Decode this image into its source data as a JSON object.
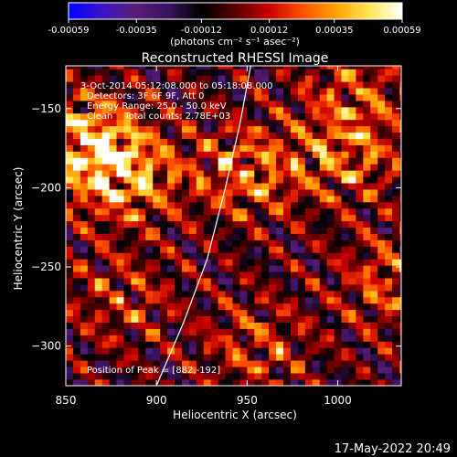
{
  "colorbar": {
    "colors": [
      "#0000ff",
      "#3c14c8",
      "#5a1e7a",
      "#3a1260",
      "#000000",
      "#5a0000",
      "#c80000",
      "#ff5000",
      "#ffa000",
      "#ffe650",
      "#ffffff"
    ],
    "ticks": [
      "-0.00059",
      "-0.00035",
      "-0.00012",
      "0.00012",
      "0.00035",
      "0.00059"
    ],
    "tick_values": [
      -0.00059,
      -0.00035,
      -0.00012,
      0.00012,
      0.00035,
      0.00059
    ],
    "range": [
      -0.00059,
      0.00059
    ],
    "units_label": "(photons cm⁻² s⁻¹ asec⁻²)"
  },
  "chart_data": {
    "type": "heatmap",
    "title": "Reconstructed RHESSI Image",
    "xlabel": "Heliocentric X (arcsec)",
    "ylabel": "Heliocentric Y (arcsec)",
    "xlim": [
      850,
      1035
    ],
    "ylim": [
      -325,
      -123
    ],
    "xticks": [
      "850",
      "900",
      "950",
      "1000"
    ],
    "xtick_values": [
      850,
      900,
      950,
      1000
    ],
    "yticks": [
      "-150",
      "-200",
      "-250",
      "-300"
    ],
    "ytick_values": [
      -150,
      -200,
      -250,
      -300
    ],
    "annotations": [
      "3-Oct-2014 05:12:08.000 to 05:18:08.000",
      "Detectors: 3F 6F 9F, Att 0",
      "Energy Range: 25.0 - 50.0 keV",
      "Clean    Total counts: 2.78E+03"
    ],
    "peak_label": "Position of Peak = [882,-192]",
    "peak": {
      "x": 882,
      "y": -192
    },
    "limb_line": [
      [
        900,
        -325
      ],
      [
        915,
        -285
      ],
      [
        928,
        -245
      ],
      [
        938,
        -200
      ],
      [
        946,
        -160
      ],
      [
        952,
        -123
      ]
    ],
    "limb_color": "#ffffff",
    "hot_spots": [
      {
        "x": 860,
        "y": -170,
        "strength": 1.0
      },
      {
        "x": 882,
        "y": -192,
        "strength": 1.0
      },
      {
        "x": 950,
        "y": -190,
        "strength": 0.8
      },
      {
        "x": 1005,
        "y": -180,
        "strength": 0.7
      },
      {
        "x": 1030,
        "y": -260,
        "strength": 0.65
      },
      {
        "x": 955,
        "y": -300,
        "strength": 0.55
      },
      {
        "x": 880,
        "y": -270,
        "strength": 0.5
      },
      {
        "x": 1010,
        "y": -140,
        "strength": 0.55
      }
    ]
  },
  "footer": {
    "timestamp": "17-May-2022 20:49"
  }
}
